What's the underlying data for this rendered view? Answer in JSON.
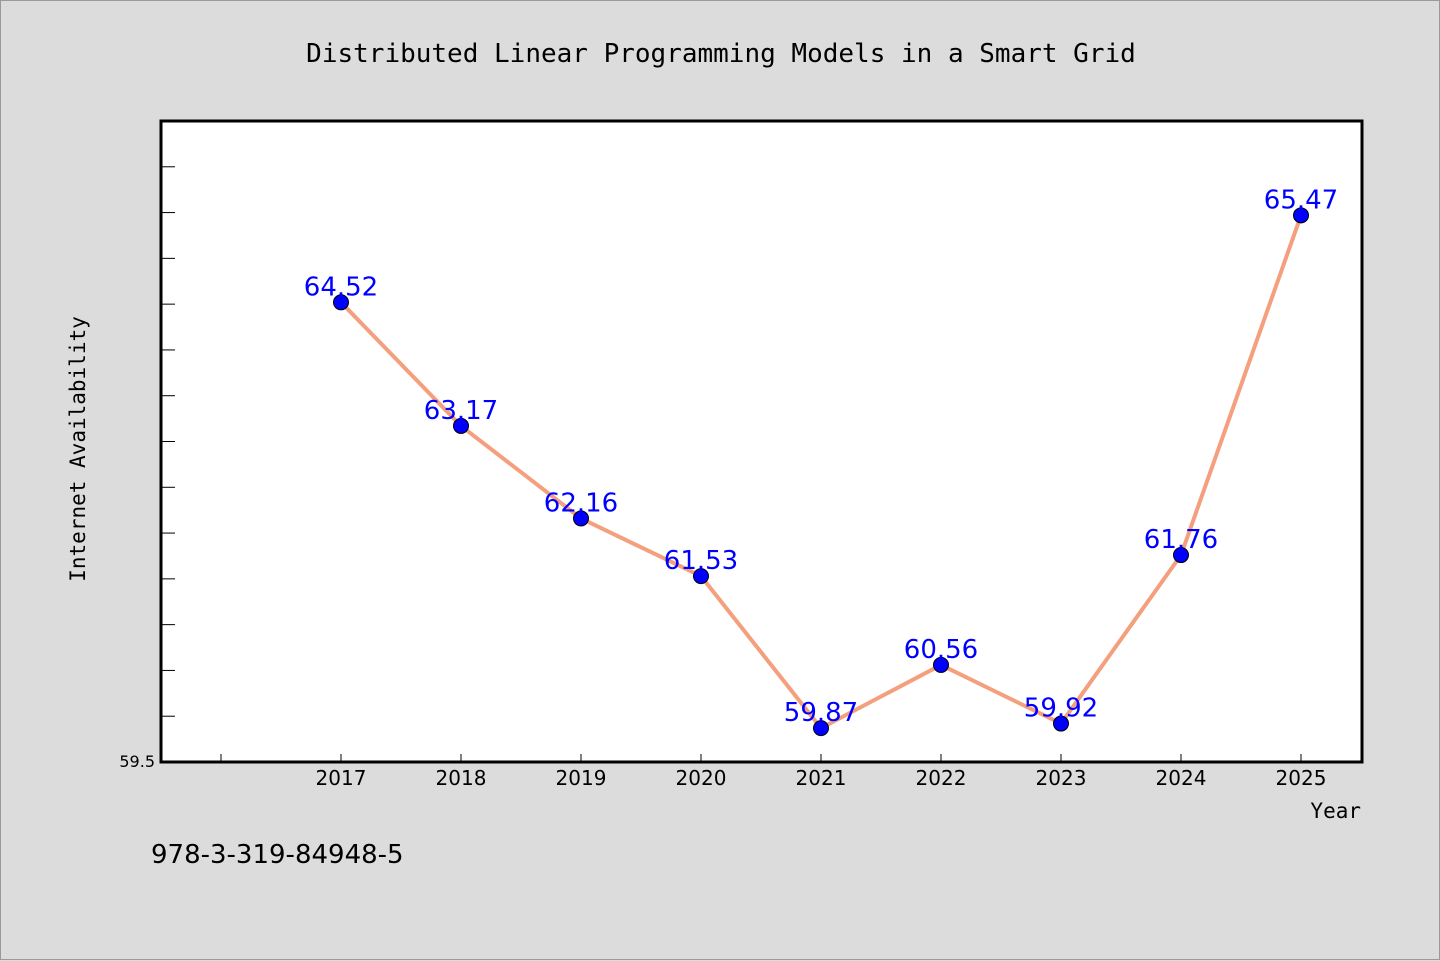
{
  "colors": {
    "background": "#dcdcdc",
    "plot_background": "#ffffff",
    "line": "#f4a07e",
    "marker": "#0000ff",
    "data_label": "#0000ff",
    "text": "#000000"
  },
  "footer": {
    "isbn": "978-3-319-84948-5"
  },
  "chart_data": {
    "type": "line",
    "title": "Distributed Linear Programming Models in a Smart Grid",
    "xlabel": "Year",
    "ylabel": "Internet Availability",
    "categories": [
      "2017",
      "2018",
      "2019",
      "2020",
      "2021",
      "2022",
      "2023",
      "2024",
      "2025"
    ],
    "values": [
      64.52,
      63.17,
      62.16,
      61.53,
      59.87,
      60.56,
      59.92,
      61.76,
      65.47
    ],
    "data_labels": [
      "64.52",
      "63.17",
      "62.16",
      "61.53",
      "59.87",
      "60.56",
      "59.92",
      "61.76",
      "65.47"
    ],
    "y_tick_labels": [
      "59.5"
    ],
    "ylim": [
      59.5,
      66.5
    ],
    "y_minor_step": 0.5,
    "grid": false,
    "legend": "none"
  }
}
